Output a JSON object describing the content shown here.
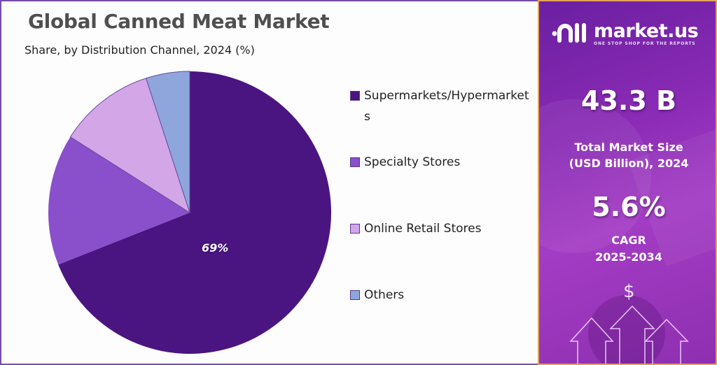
{
  "header": {
    "title": "Global Canned Meat Market",
    "subtitle": "Share, by Distribution Channel, 2024 (%)"
  },
  "pie": {
    "center_label": "69%"
  },
  "legend": {
    "items": [
      {
        "label": "Supermarkets/Hypermarkets",
        "color": "#4b1581"
      },
      {
        "label": "Specialty Stores",
        "color": "#8a4fcb"
      },
      {
        "label": "Online Retail Stores",
        "color": "#d3a6e8"
      },
      {
        "label": "Others",
        "color": "#8ea6dc"
      }
    ]
  },
  "sidebar": {
    "brand": "market.us",
    "tagline": "ONE STOP SHOP FOR THE REPORTS",
    "market_size_value": "43.3 B",
    "market_size_label_1": "Total Market Size",
    "market_size_label_2": "(USD Billion), 2024",
    "cagr_value": "5.6%",
    "cagr_label_1": "CAGR",
    "cagr_label_2": "2025-2034",
    "dollar_symbol": "$"
  },
  "colors": {
    "supermarkets": "#4b1581",
    "specialty": "#8a4fcb",
    "online": "#d3a6e8",
    "others": "#8ea6dc",
    "sidebar_bg": "#8a2bb5",
    "title_text": "#4f4f4f"
  },
  "chart_data": {
    "type": "pie",
    "title": "Global Canned Meat Market",
    "subtitle": "Share, by Distribution Channel, 2024 (%)",
    "categories": [
      "Supermarkets/Hypermarkets",
      "Specialty Stores",
      "Online Retail Stores",
      "Others"
    ],
    "values": [
      69,
      15,
      11,
      5
    ],
    "data_labels": [
      "69%",
      "",
      "",
      ""
    ],
    "colors": [
      "#4b1581",
      "#8a4fcb",
      "#d3a6e8",
      "#8ea6dc"
    ],
    "start_angle": "12 o'clock, clockwise",
    "legend_position": "right",
    "annotations": {
      "total_market_size": "43.3 B (USD Billion), 2024",
      "cagr": "5.6% (2025-2034)"
    }
  }
}
